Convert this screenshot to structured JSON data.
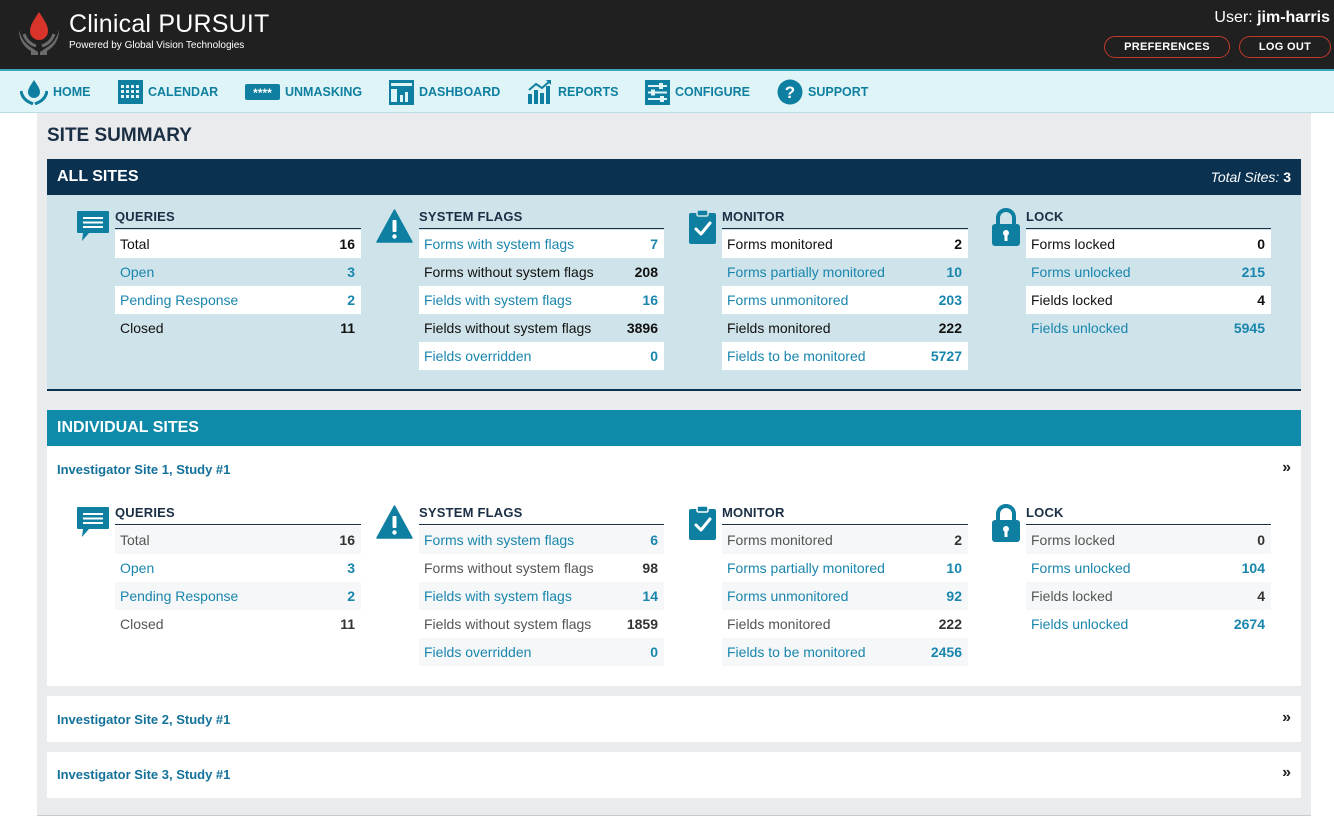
{
  "header": {
    "brand": "Clinical PURSUIT",
    "brand_sub": "Powered by Global Vision Technologies",
    "user_prefix": "User: ",
    "username": "jim-harris",
    "preferences_label": "PREFERENCES",
    "logout_label": "LOG OUT",
    "accent": "#c0392b"
  },
  "nav": {
    "items": [
      {
        "label": "HOME",
        "icon": "home-drop-icon"
      },
      {
        "label": "CALENDAR",
        "icon": "calendar-icon"
      },
      {
        "label": "UNMASKING",
        "icon": "unmasking-icon"
      },
      {
        "label": "DASHBOARD",
        "icon": "dashboard-icon"
      },
      {
        "label": "REPORTS",
        "icon": "reports-icon"
      },
      {
        "label": "CONFIGURE",
        "icon": "configure-icon"
      },
      {
        "label": "SUPPORT",
        "icon": "support-icon"
      }
    ]
  },
  "page": {
    "title": "SITE SUMMARY"
  },
  "all_sites": {
    "band_title": "ALL SITES",
    "total_label": "Total Sites:",
    "total_value": "3",
    "queries": {
      "title": "QUERIES",
      "rows": [
        {
          "label": "Total",
          "value": "16"
        },
        {
          "label": "Open",
          "value": "3"
        },
        {
          "label": "Pending Response",
          "value": "2"
        },
        {
          "label": "Closed",
          "value": "11"
        }
      ]
    },
    "system_flags": {
      "title": "SYSTEM FLAGS",
      "rows": [
        {
          "label": "Forms with system flags",
          "value": "7"
        },
        {
          "label": "Forms without system flags",
          "value": "208"
        },
        {
          "label": "Fields with system flags",
          "value": "16"
        },
        {
          "label": "Fields without system flags",
          "value": "3896"
        },
        {
          "label": "Fields overridden",
          "value": "0"
        }
      ]
    },
    "monitor": {
      "title": "MONITOR",
      "rows": [
        {
          "label": "Forms monitored",
          "value": "2"
        },
        {
          "label": "Forms partially monitored",
          "value": "10"
        },
        {
          "label": "Forms unmonitored",
          "value": "203"
        },
        {
          "label": "Fields monitored",
          "value": "222"
        },
        {
          "label": "Fields to be monitored",
          "value": "5727"
        }
      ]
    },
    "lock": {
      "title": "LOCK",
      "rows": [
        {
          "label": "Forms locked",
          "value": "0"
        },
        {
          "label": "Forms unlocked",
          "value": "215"
        },
        {
          "label": "Fields locked",
          "value": "4"
        },
        {
          "label": "Fields unlocked",
          "value": "5945"
        }
      ]
    }
  },
  "individual_sites": {
    "band_title": "INDIVIDUAL SITES",
    "sites": [
      {
        "name": "Investigator Site 1, Study #1"
      },
      {
        "name": "Investigator Site 2, Study #1"
      },
      {
        "name": "Investigator Site 3, Study #1"
      }
    ],
    "expand_glyph": "»",
    "site1": {
      "queries": {
        "title": "QUERIES",
        "rows": [
          {
            "label": "Total",
            "value": "16"
          },
          {
            "label": "Open",
            "value": "3"
          },
          {
            "label": "Pending Response",
            "value": "2"
          },
          {
            "label": "Closed",
            "value": "11"
          }
        ]
      },
      "system_flags": {
        "title": "SYSTEM FLAGS",
        "rows": [
          {
            "label": "Forms with system flags",
            "value": "6"
          },
          {
            "label": "Forms without system flags",
            "value": "98"
          },
          {
            "label": "Fields with system flags",
            "value": "14"
          },
          {
            "label": "Fields without system flags",
            "value": "1859"
          },
          {
            "label": "Fields overridden",
            "value": "0"
          }
        ]
      },
      "monitor": {
        "title": "MONITOR",
        "rows": [
          {
            "label": "Forms monitored",
            "value": "2"
          },
          {
            "label": "Forms partially monitored",
            "value": "10"
          },
          {
            "label": "Forms unmonitored",
            "value": "92"
          },
          {
            "label": "Fields monitored",
            "value": "222"
          },
          {
            "label": "Fields to be monitored",
            "value": "2456"
          }
        ]
      },
      "lock": {
        "title": "LOCK",
        "rows": [
          {
            "label": "Forms locked",
            "value": "0"
          },
          {
            "label": "Forms unlocked",
            "value": "104"
          },
          {
            "label": "Fields locked",
            "value": "4"
          },
          {
            "label": "Fields unlocked",
            "value": "2674"
          }
        ]
      }
    }
  }
}
